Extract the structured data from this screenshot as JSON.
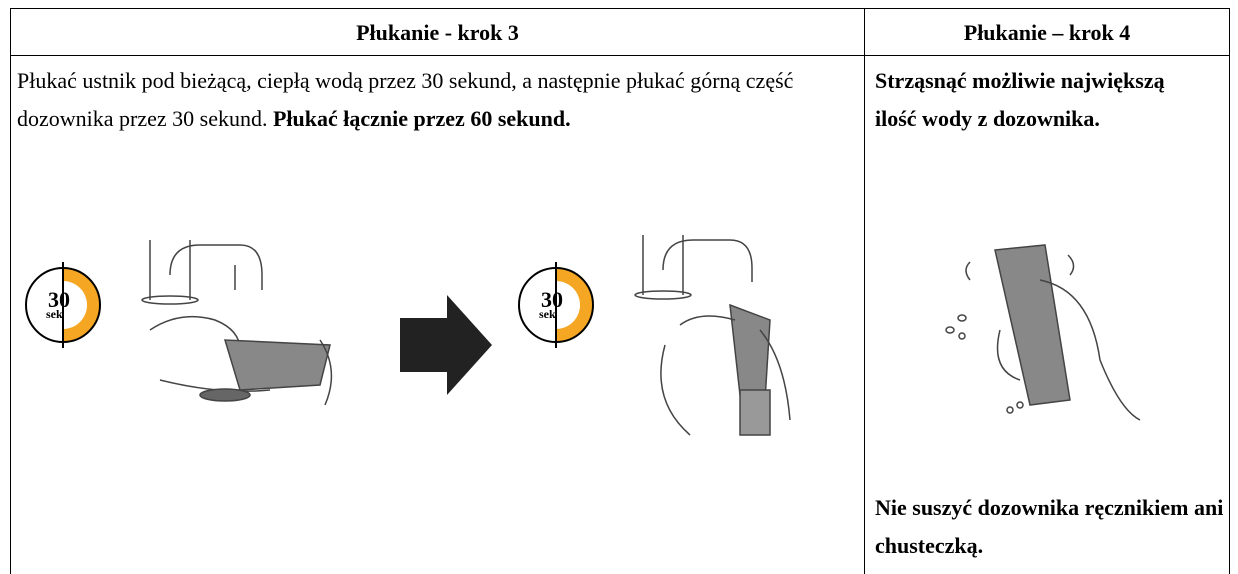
{
  "table": {
    "header": [
      "Płukanie - krok 3",
      "Płukanie – krok 4"
    ],
    "step3": {
      "text": "Płukać ustnik pod bieżącą, ciepłą wodą przez 30 sekund, a następnie płukać górną część dozownika przez 30 sekund.",
      "text_bold": "Płukać łącznie przez 60 sekund.",
      "timers": [
        {
          "value": "30",
          "unit": "sek"
        },
        {
          "value": "30",
          "unit": "sek"
        }
      ]
    },
    "step4": {
      "text": "Strząsnąć możliwie największą ilość wody z dozownika.",
      "note": "Nie suszyć dozownika ręcznikiem ani chusteczką."
    }
  }
}
